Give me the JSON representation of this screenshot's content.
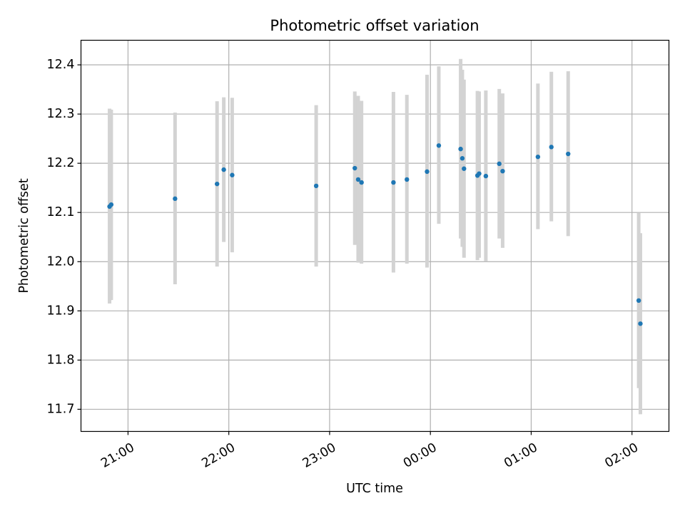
{
  "chart_data": {
    "type": "scatter",
    "title": "Photometric offset variation",
    "xlabel": "UTC time",
    "ylabel": "Photometric offset",
    "grid": true,
    "x_axis": {
      "kind": "time",
      "range": [
        "20:32",
        "02:22"
      ],
      "ticks": [
        "21:00",
        "22:00",
        "23:00",
        "00:00",
        "01:00",
        "02:00"
      ],
      "tick_label_rotation": 30
    },
    "y_axis": {
      "range": [
        11.655,
        12.45
      ],
      "ticks": [
        "11.7",
        "11.8",
        "11.9",
        "12.0",
        "12.1",
        "12.2",
        "12.3",
        "12.4"
      ]
    },
    "colors": {
      "point": "#1f77b4",
      "errorbar": "#d3d3d3",
      "grid": "#b0b0b0"
    },
    "series": [
      {
        "points": [
          {
            "x": "20:49",
            "y": 12.112,
            "yerr_low": 11.915,
            "yerr_high": 12.311
          },
          {
            "x": "20:50",
            "y": 12.116,
            "yerr_low": 11.922,
            "yerr_high": 12.309
          },
          {
            "x": "21:28",
            "y": 12.128,
            "yerr_low": 11.954,
            "yerr_high": 12.303
          },
          {
            "x": "21:53",
            "y": 12.158,
            "yerr_low": 11.99,
            "yerr_high": 12.326
          },
          {
            "x": "21:57",
            "y": 12.187,
            "yerr_low": 12.04,
            "yerr_high": 12.334
          },
          {
            "x": "22:02",
            "y": 12.176,
            "yerr_low": 12.019,
            "yerr_high": 12.333
          },
          {
            "x": "22:52",
            "y": 12.154,
            "yerr_low": 11.99,
            "yerr_high": 12.318
          },
          {
            "x": "23:15",
            "y": 12.19,
            "yerr_low": 12.034,
            "yerr_high": 12.346
          },
          {
            "x": "23:17",
            "y": 12.167,
            "yerr_low": 11.998,
            "yerr_high": 12.337
          },
          {
            "x": "23:19",
            "y": 12.161,
            "yerr_low": 11.996,
            "yerr_high": 12.327
          },
          {
            "x": "23:38",
            "y": 12.161,
            "yerr_low": 11.978,
            "yerr_high": 12.345
          },
          {
            "x": "23:46",
            "y": 12.167,
            "yerr_low": 11.996,
            "yerr_high": 12.339
          },
          {
            "x": "23:58",
            "y": 12.183,
            "yerr_low": 11.988,
            "yerr_high": 12.38
          },
          {
            "x": "00:05",
            "y": 12.236,
            "yerr_low": 12.077,
            "yerr_high": 12.397
          },
          {
            "x": "00:18",
            "y": 12.229,
            "yerr_low": 12.047,
            "yerr_high": 12.412
          },
          {
            "x": "00:19",
            "y": 12.21,
            "yerr_low": 12.03,
            "yerr_high": 12.39
          },
          {
            "x": "00:20",
            "y": 12.189,
            "yerr_low": 12.008,
            "yerr_high": 12.37
          },
          {
            "x": "00:28",
            "y": 12.175,
            "yerr_low": 12.003,
            "yerr_high": 12.347
          },
          {
            "x": "00:29",
            "y": 12.179,
            "yerr_low": 12.008,
            "yerr_high": 12.346
          },
          {
            "x": "00:33",
            "y": 12.174,
            "yerr_low": 12.001,
            "yerr_high": 12.348
          },
          {
            "x": "00:41",
            "y": 12.199,
            "yerr_low": 12.047,
            "yerr_high": 12.351
          },
          {
            "x": "00:43",
            "y": 12.184,
            "yerr_low": 12.028,
            "yerr_high": 12.342
          },
          {
            "x": "01:04",
            "y": 12.213,
            "yerr_low": 12.066,
            "yerr_high": 12.362
          },
          {
            "x": "01:12",
            "y": 12.233,
            "yerr_low": 12.082,
            "yerr_high": 12.386
          },
          {
            "x": "01:22",
            "y": 12.219,
            "yerr_low": 12.052,
            "yerr_high": 12.387
          },
          {
            "x": "02:04",
            "y": 11.921,
            "yerr_low": 11.743,
            "yerr_high": 12.099
          },
          {
            "x": "02:05",
            "y": 11.874,
            "yerr_low": 11.69,
            "yerr_high": 12.058
          }
        ]
      }
    ]
  }
}
